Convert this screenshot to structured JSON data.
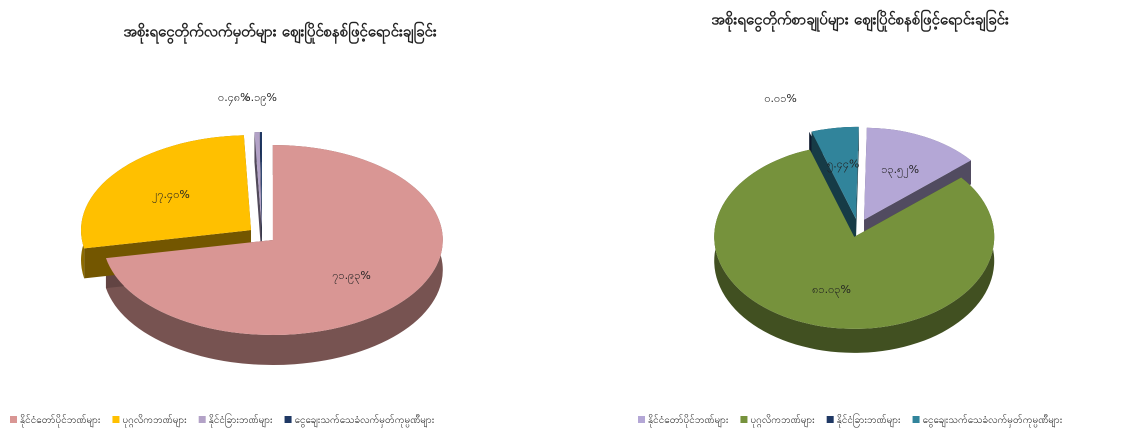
{
  "chart_data": [
    {
      "type": "pie3d",
      "title": "အစိုးရငွေတိုက်လက်မှတ်များ ဈေးပြိုင်စနစ်ဖြင့်ရောင်းချခြင်း",
      "categories": [
        "နိုင်ငံတော်ပိုင်ဘဏ်များ",
        "ပုဂ္ဂလိကဘဏ်များ",
        "နိုင်ငံခြားဘဏ်များ",
        "ငွေချေးသက်သေခံလက်မှတ်ကုမ္ပဏီများ"
      ],
      "values": [
        71.93,
        27.4,
        0.48,
        0.19
      ],
      "value_labels": [
        "၇၁.၉၃%",
        "၂၇.၄၀%",
        "၀.၄၈%",
        "၀.၁၉%"
      ],
      "colors": [
        "#d99694",
        "#ffc000",
        "#b3a2c7",
        "#1f3864"
      ],
      "legend": "bottom"
    },
    {
      "type": "pie3d",
      "title": "အစိုးရငွေတိုက်စာချုပ်များ ဈေးပြိုင်စနစ်ဖြင့်ရောင်းချခြင်း",
      "categories": [
        "နိုင်ငံတော်ပိုင်ဘဏ်များ",
        "ပုဂ္ဂလိကဘဏ်များ",
        "နိုင်ငံခြားဘဏ်များ",
        "ငွေချေးသက်သေခံလက်မှတ်ကုမ္ပဏီများ"
      ],
      "values": [
        13.52,
        81.03,
        0.01,
        5.44
      ],
      "value_labels": [
        "၁၃.၅၂%",
        "၈၁.၀၃%",
        "၀.၀၁%",
        "၅.၄၄%"
      ],
      "colors": [
        "#b4a7d6",
        "#76923c",
        "#1f3864",
        "#31849b"
      ],
      "legend": "bottom"
    }
  ]
}
